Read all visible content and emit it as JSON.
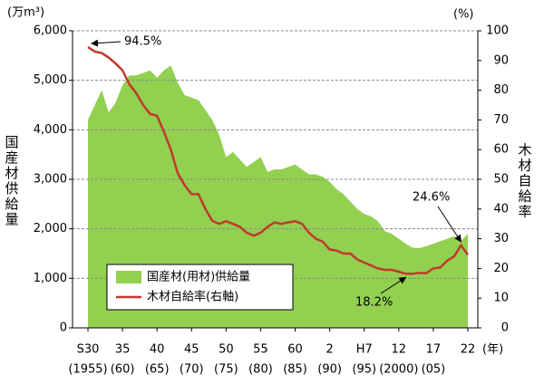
{
  "chart_data": {
    "type": "area-line",
    "y_label_unit": "(万m³)",
    "y2_label_unit": "(%)",
    "y_label": "国産材供給量",
    "y2_label": "木材自給率",
    "x_label_unit": "(年)",
    "categories": [
      "S30",
      null,
      null,
      null,
      null,
      "35",
      null,
      null,
      null,
      null,
      "40",
      null,
      null,
      null,
      null,
      "45",
      null,
      null,
      null,
      null,
      "50",
      null,
      null,
      null,
      null,
      "55",
      null,
      null,
      null,
      null,
      "60",
      null,
      null,
      null,
      null,
      "2",
      null,
      null,
      null,
      null,
      "H7",
      null,
      null,
      null,
      null,
      "12",
      null,
      null,
      null,
      null,
      "17",
      null,
      null,
      null,
      null,
      "22"
    ],
    "categories_sub": [
      "(1955)",
      null,
      null,
      null,
      null,
      "(60)",
      null,
      null,
      null,
      null,
      "(65)",
      null,
      null,
      null,
      null,
      "(70)",
      null,
      null,
      null,
      null,
      "(75)",
      null,
      null,
      null,
      null,
      "(80)",
      null,
      null,
      null,
      null,
      "(85)",
      null,
      null,
      null,
      null,
      "(90)",
      null,
      null,
      null,
      null,
      "(95)",
      null,
      null,
      null,
      null,
      "(2000)",
      null,
      null,
      null,
      null,
      "(05)",
      null,
      null,
      null,
      null,
      null
    ],
    "series": [
      {
        "name": "国産材(用材)供給量",
        "color": "#92d050",
        "kind": "area",
        "values": [
          4200,
          4500,
          4800,
          4350,
          4550,
          4900,
          5100,
          5100,
          5150,
          5200,
          5050,
          5200,
          5300,
          4950,
          4700,
          4650,
          4600,
          4400,
          4200,
          3900,
          3450,
          3550,
          3400,
          3250,
          3350,
          3450,
          3150,
          3200,
          3200,
          3250,
          3300,
          3200,
          3100,
          3100,
          3050,
          2950,
          2800,
          2700,
          2550,
          2400,
          2300,
          2250,
          2150,
          1950,
          1900,
          1800,
          1700,
          1620,
          1610,
          1650,
          1700,
          1750,
          1800,
          1850,
          1750,
          1900
        ]
      },
      {
        "name": "木材自給率(右軸)",
        "color": "#c0392b",
        "kind": "line",
        "axis": "y2",
        "values": [
          94.5,
          93,
          92.5,
          91,
          89,
          86.7,
          82,
          79,
          75,
          72,
          71.4,
          66,
          60,
          52,
          48,
          45,
          45,
          40,
          36,
          35,
          35.9,
          35,
          34,
          32,
          31,
          32,
          34,
          35.5,
          35,
          35.5,
          35.9,
          35,
          32,
          30,
          29,
          26.4,
          26,
          25,
          25,
          23,
          22,
          21,
          20,
          19.5,
          19.5,
          18.9,
          18.2,
          18.2,
          18.5,
          18.4,
          20,
          20.3,
          22.6,
          24,
          27.8,
          24.6
        ]
      }
    ],
    "annotations": [
      "94.5%",
      "18.2%",
      "24.6%"
    ],
    "ylim": [
      0,
      6000
    ],
    "yticks": [
      0,
      {
        "value": 1000,
        "label": "1,000"
      },
      {
        "value": 2000,
        "label": "2,000"
      },
      {
        "value": 3000,
        "label": "3,000"
      },
      {
        "value": 4000,
        "label": "4,000"
      },
      {
        "value": 5000,
        "label": "5,000"
      },
      {
        "value": 6000,
        "label": "6,000"
      }
    ],
    "y2lim": [
      0,
      100
    ],
    "y2ticks": [
      0,
      10,
      20,
      30,
      40,
      50,
      60,
      70,
      80,
      90,
      100
    ],
    "grid": true
  }
}
